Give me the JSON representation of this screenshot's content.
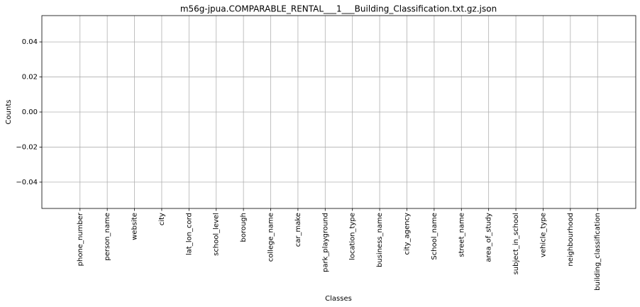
{
  "chart_data": {
    "type": "bar",
    "title": "m56g-jpua.COMPARABLE_RENTAL___1___Building_Classification.txt.gz.json",
    "x_label": "Classes",
    "y_label": "Counts",
    "categories": [
      "phone_number",
      "person_name",
      "website",
      "city",
      "lat_lon_cord",
      "school_level",
      "borough",
      "college_name",
      "car_make",
      "park_playground",
      "location_type",
      "business_name",
      "city_agency",
      "School_name",
      "street_name",
      "area_of_study",
      "subject_in_school",
      "vehicle_type",
      "neighbourhood",
      "building_classification"
    ],
    "values": [
      0,
      0,
      0,
      0,
      0,
      0,
      0,
      0,
      0,
      0,
      0,
      0,
      0,
      0,
      0,
      0,
      0,
      0,
      0,
      0
    ],
    "color": "#1f77b4",
    "ylim": [
      -0.055,
      0.055
    ],
    "yticks": [
      {
        "value": -0.04,
        "label": "−0.04"
      },
      {
        "value": -0.02,
        "label": "−0.02"
      },
      {
        "value": 0,
        "label": "0.00"
      },
      0.02,
      0.04
    ],
    "grid": true
  }
}
